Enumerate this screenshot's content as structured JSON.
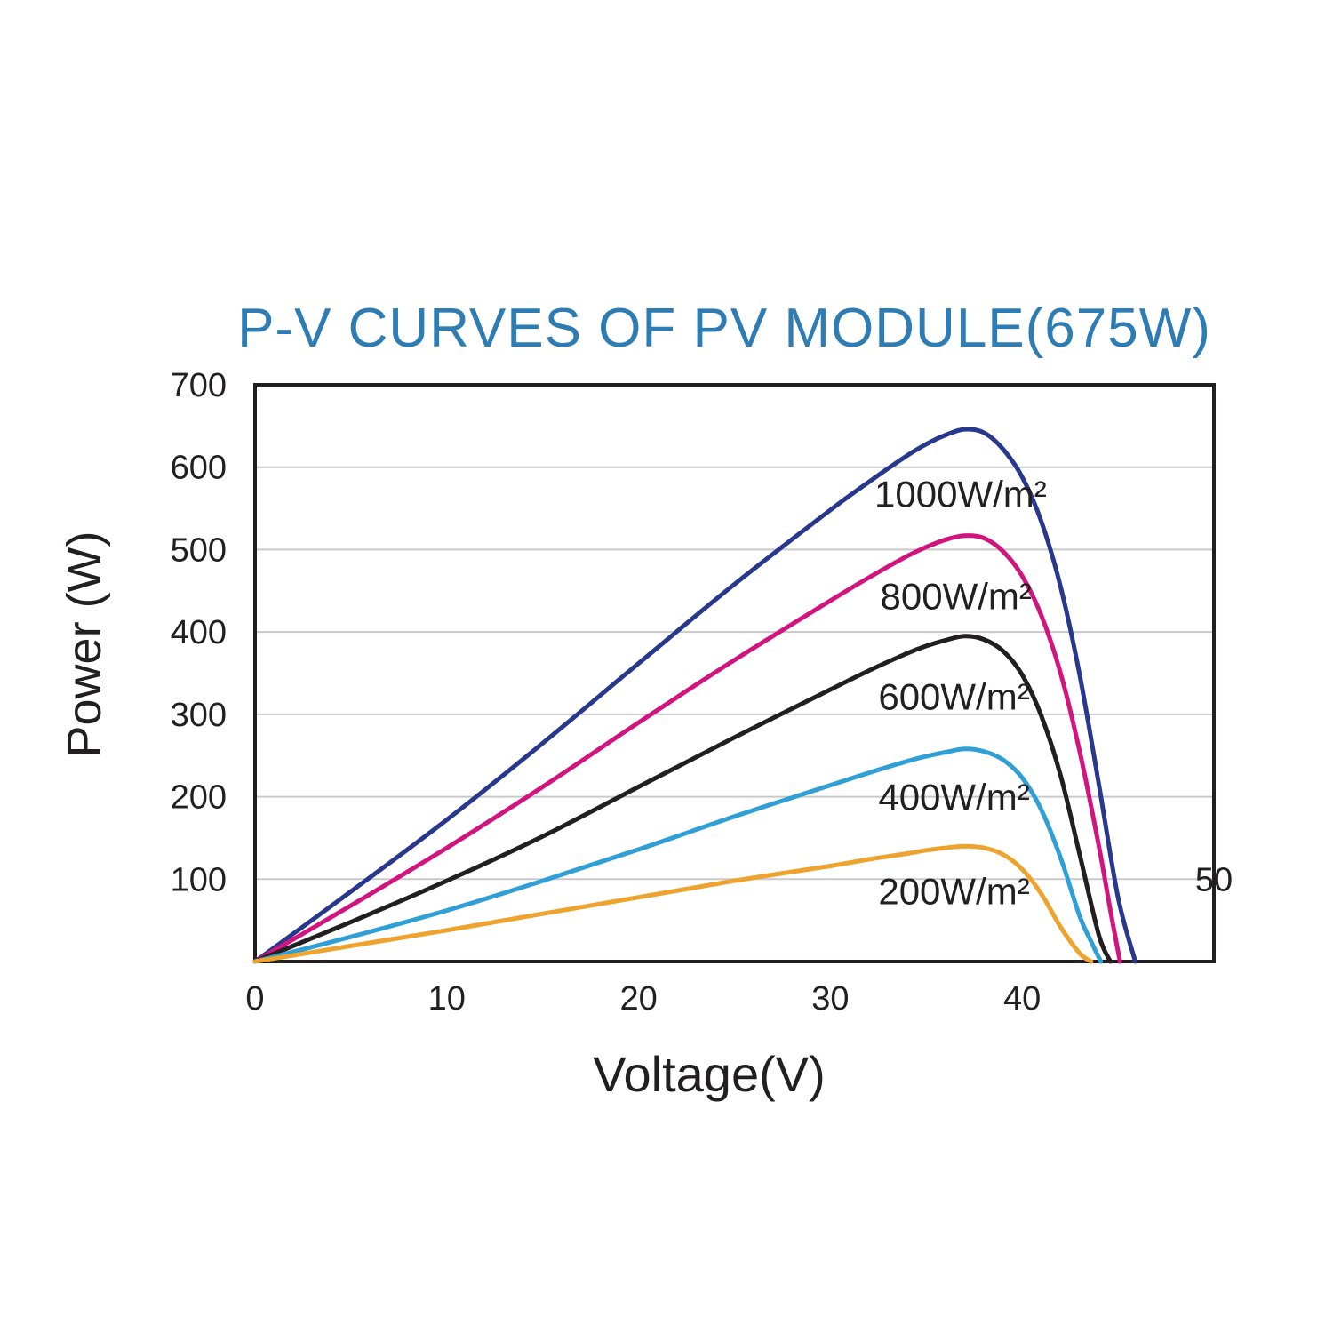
{
  "chart_data": {
    "type": "line",
    "title": "P-V CURVES OF PV MODULE(675W)",
    "title_color": "#2e7cb4",
    "xlabel": "Voltage(V)",
    "ylabel": "Power (W)",
    "xlim": [
      0,
      50
    ],
    "ylim": [
      0,
      700
    ],
    "x_ticks": [
      0,
      10,
      20,
      30,
      40
    ],
    "x_edge_tick": {
      "label": "50",
      "v": 50,
      "p": 100
    },
    "y_ticks": [
      100,
      200,
      300,
      400,
      500,
      600,
      700
    ],
    "grid": "horizontal",
    "grid_color": "#c9c9c9",
    "axis_color": "#231f20",
    "legend_position": "inline-labels",
    "series": [
      {
        "name": "1000wm2",
        "label": "1000W/m²",
        "irradiance_w_per_m2": 1000,
        "color": "#28388c",
        "max_power_w": 646,
        "v_mp": 37,
        "v_oc": 45.9,
        "label_pos": {
          "v": 32.3,
          "p": 568
        },
        "points": [
          [
            0,
            0
          ],
          [
            5,
            85
          ],
          [
            10,
            172
          ],
          [
            15,
            265
          ],
          [
            20,
            362
          ],
          [
            25,
            458
          ],
          [
            30,
            548
          ],
          [
            32,
            582
          ],
          [
            34,
            614
          ],
          [
            35,
            628
          ],
          [
            36,
            639
          ],
          [
            37,
            646
          ],
          [
            38,
            642
          ],
          [
            39,
            622
          ],
          [
            40,
            588
          ],
          [
            41,
            534
          ],
          [
            42,
            455
          ],
          [
            43,
            348
          ],
          [
            44,
            215
          ],
          [
            45,
            78
          ],
          [
            45.9,
            0
          ]
        ]
      },
      {
        "name": "800wm2",
        "label": "800W/m²",
        "irradiance_w_per_m2": 800,
        "color": "#d2157e",
        "max_power_w": 517,
        "v_mp": 37,
        "v_oc": 45.1,
        "label_pos": {
          "v": 32.6,
          "p": 444
        },
        "points": [
          [
            0,
            0
          ],
          [
            5,
            68
          ],
          [
            10,
            138
          ],
          [
            15,
            212
          ],
          [
            20,
            290
          ],
          [
            25,
            366
          ],
          [
            30,
            438
          ],
          [
            32,
            466
          ],
          [
            34,
            492
          ],
          [
            35,
            503
          ],
          [
            36,
            512
          ],
          [
            37,
            517
          ],
          [
            38,
            514
          ],
          [
            39,
            498
          ],
          [
            40,
            468
          ],
          [
            41,
            420
          ],
          [
            42,
            350
          ],
          [
            43,
            255
          ],
          [
            44,
            140
          ],
          [
            44.6,
            62
          ],
          [
            45.1,
            0
          ]
        ]
      },
      {
        "name": "600wm2",
        "label": "600W/m²",
        "irradiance_w_per_m2": 600,
        "color": "#231f20",
        "max_power_w": 395,
        "v_mp": 37,
        "v_oc": 44.6,
        "label_pos": {
          "v": 32.5,
          "p": 322
        },
        "points": [
          [
            0,
            0
          ],
          [
            5,
            48
          ],
          [
            10,
            98
          ],
          [
            15,
            152
          ],
          [
            20,
            212
          ],
          [
            25,
            272
          ],
          [
            30,
            330
          ],
          [
            32,
            353
          ],
          [
            34,
            374
          ],
          [
            35,
            383
          ],
          [
            36,
            390
          ],
          [
            37,
            395
          ],
          [
            38,
            391
          ],
          [
            39,
            377
          ],
          [
            40,
            348
          ],
          [
            41,
            298
          ],
          [
            42,
            226
          ],
          [
            43,
            130
          ],
          [
            44,
            32
          ],
          [
            44.6,
            0
          ]
        ]
      },
      {
        "name": "400wm2",
        "label": "400W/m²",
        "irradiance_w_per_m2": 400,
        "color": "#2f9fd6",
        "max_power_w": 258,
        "v_mp": 37,
        "v_oc": 44.1,
        "label_pos": {
          "v": 32.5,
          "p": 200
        },
        "points": [
          [
            0,
            0
          ],
          [
            5,
            30
          ],
          [
            10,
            62
          ],
          [
            15,
            98
          ],
          [
            20,
            136
          ],
          [
            25,
            176
          ],
          [
            30,
            214
          ],
          [
            32,
            229
          ],
          [
            34,
            243
          ],
          [
            35,
            249
          ],
          [
            36,
            254
          ],
          [
            37,
            258
          ],
          [
            38,
            255
          ],
          [
            39,
            245
          ],
          [
            40,
            223
          ],
          [
            41,
            184
          ],
          [
            42,
            126
          ],
          [
            43,
            55
          ],
          [
            43.6,
            24
          ],
          [
            44.1,
            0
          ]
        ]
      },
      {
        "name": "200wm2",
        "label": "200W/m²",
        "irradiance_w_per_m2": 200,
        "color": "#eda32d",
        "max_power_w": 140,
        "v_mp": 37,
        "v_oc": 43.6,
        "label_pos": {
          "v": 32.5,
          "p": 86
        },
        "points": [
          [
            0,
            0
          ],
          [
            5,
            19
          ],
          [
            10,
            38
          ],
          [
            15,
            58
          ],
          [
            20,
            78
          ],
          [
            25,
            98
          ],
          [
            30,
            116
          ],
          [
            32,
            124
          ],
          [
            34,
            131
          ],
          [
            35,
            135
          ],
          [
            36,
            138
          ],
          [
            37,
            140
          ],
          [
            38,
            138
          ],
          [
            39,
            130
          ],
          [
            40,
            112
          ],
          [
            41,
            82
          ],
          [
            42,
            42
          ],
          [
            43,
            10
          ],
          [
            43.6,
            0
          ]
        ]
      }
    ]
  }
}
